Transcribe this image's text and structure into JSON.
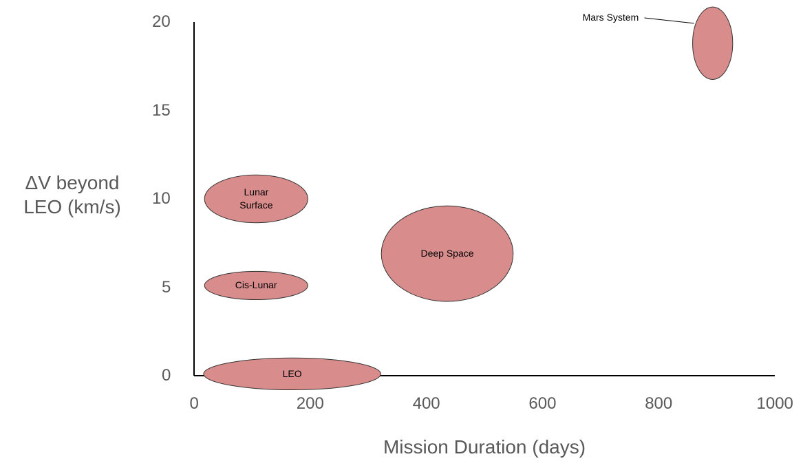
{
  "chart_data": {
    "type": "ellipse",
    "x_label": "Mission Duration (days)",
    "y_label": "ΔV beyond\nLEO (km/s)",
    "labels": [
      "LEO",
      "Cis-Lunar",
      "Lunar\nSurface",
      "Deep Space",
      "Mars System"
    ],
    "x": [
      169,
      107,
      107,
      436,
      893
    ],
    "values": [
      0.1,
      5.1,
      10.0,
      6.9,
      18.8
    ],
    "widths": [
      305,
      178,
      178,
      227,
      69
    ],
    "heights": [
      1.8,
      1.6,
      2.7,
      5.4,
      4.1
    ],
    "color": "#d98c8c",
    "xlim": [
      0,
      1000
    ],
    "xticks": [
      0,
      200,
      400,
      600,
      800,
      1000
    ],
    "ylim": [
      0,
      20
    ],
    "yticks": [
      0,
      5,
      10,
      15,
      20
    ]
  }
}
